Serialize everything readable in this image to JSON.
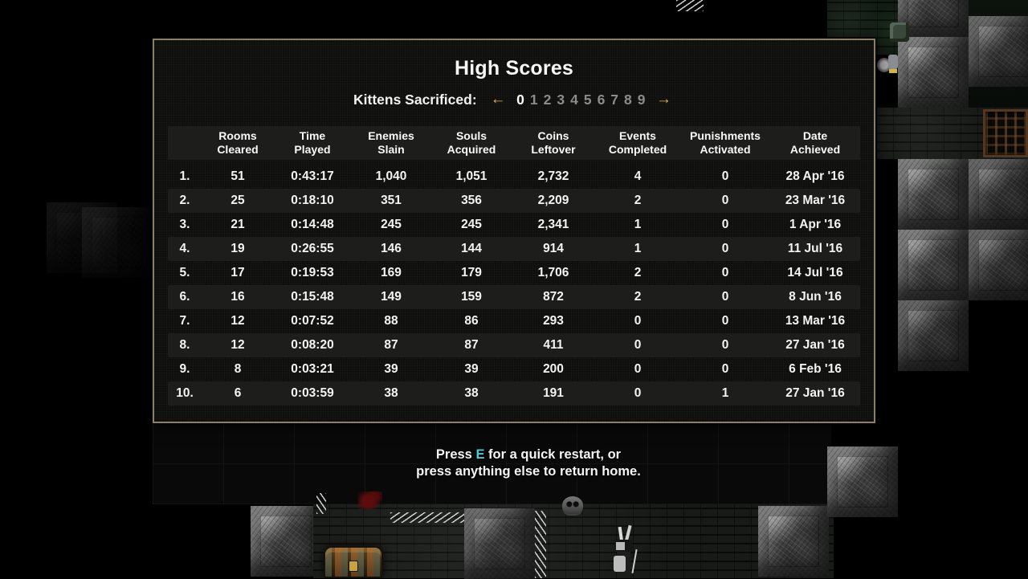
{
  "colors": {
    "panel_border": "#8d7f63",
    "accent_gold": "#e8b33a",
    "key_cyan": "#4ec9da",
    "text_white": "#f2f2f2",
    "inactive_gray": "#8c8c8c",
    "row_stripe": "#1d1d1c"
  },
  "panel": {
    "title": "High Scores",
    "selector": {
      "label": "Kittens Sacrificed:",
      "left_arrow": "←",
      "right_arrow": "→",
      "selected": "0",
      "others": [
        "1",
        "2",
        "3",
        "4",
        "5",
        "6",
        "7",
        "8",
        "9"
      ]
    },
    "table": {
      "headers": [
        {
          "line1": "Rooms",
          "line2": "Cleared"
        },
        {
          "line1": "Time",
          "line2": "Played"
        },
        {
          "line1": "Enemies",
          "line2": "Slain"
        },
        {
          "line1": "Souls",
          "line2": "Acquired"
        },
        {
          "line1": "Coins",
          "line2": "Leftover"
        },
        {
          "line1": "Events",
          "line2": "Completed"
        },
        {
          "line1": "Punishments",
          "line2": "Activated"
        },
        {
          "line1": "Date",
          "line2": "Achieved"
        }
      ],
      "rows": [
        {
          "rank": "1.",
          "cells": [
            "51",
            "0:43:17",
            "1,040",
            "1,051",
            "2,732",
            "4",
            "0",
            "28 Apr '16"
          ]
        },
        {
          "rank": "2.",
          "cells": [
            "25",
            "0:18:10",
            "351",
            "356",
            "2,209",
            "2",
            "0",
            "23 Mar '16"
          ]
        },
        {
          "rank": "3.",
          "cells": [
            "21",
            "0:14:48",
            "245",
            "245",
            "2,341",
            "1",
            "0",
            "1 Apr '16"
          ]
        },
        {
          "rank": "4.",
          "cells": [
            "19",
            "0:26:55",
            "146",
            "144",
            "914",
            "1",
            "0",
            "11 Jul '16"
          ]
        },
        {
          "rank": "5.",
          "cells": [
            "17",
            "0:19:53",
            "169",
            "179",
            "1,706",
            "2",
            "0",
            "14 Jul '16"
          ]
        },
        {
          "rank": "6.",
          "cells": [
            "16",
            "0:15:48",
            "149",
            "159",
            "872",
            "2",
            "0",
            "8 Jun '16"
          ]
        },
        {
          "rank": "7.",
          "cells": [
            "12",
            "0:07:52",
            "88",
            "86",
            "293",
            "0",
            "0",
            "13 Mar '16"
          ]
        },
        {
          "rank": "8.",
          "cells": [
            "12",
            "0:08:20",
            "87",
            "87",
            "411",
            "0",
            "0",
            "27 Jan '16"
          ]
        },
        {
          "rank": "9.",
          "cells": [
            "8",
            "0:03:21",
            "39",
            "39",
            "200",
            "0",
            "0",
            "6 Feb '16"
          ]
        },
        {
          "rank": "10.",
          "cells": [
            "6",
            "0:03:59",
            "38",
            "38",
            "191",
            "0",
            "1",
            "27 Jan '16"
          ]
        }
      ]
    }
  },
  "footer": {
    "line1_before": "Press ",
    "key": "E",
    "line1_after": " for a quick restart, or",
    "line2": "press anything else to return home."
  }
}
